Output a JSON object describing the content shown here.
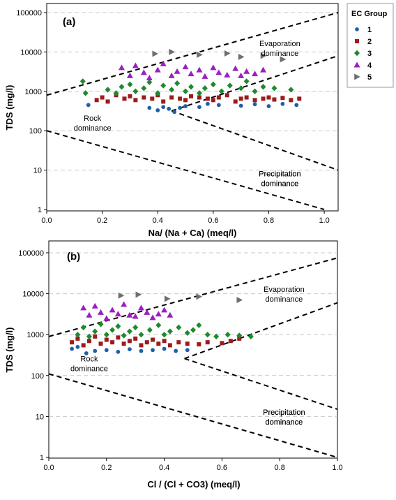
{
  "legend": {
    "title": "EC Group",
    "items": [
      {
        "label": "1",
        "color": "#1f5fa8",
        "marker": "circle"
      },
      {
        "label": "2",
        "color": "#9c1c1c",
        "marker": "square"
      },
      {
        "label": "3",
        "color": "#1e8a2e",
        "marker": "diamond"
      },
      {
        "label": "4",
        "color": "#9b1fc0",
        "marker": "triangle-up"
      },
      {
        "label": "5",
        "color": "#6e6e6e",
        "marker": "triangle-right"
      }
    ]
  },
  "chart_data": [
    {
      "type": "scatter",
      "panel_label": "(a)",
      "xlabel": "Na/ (Na + Ca)  (meq/l)",
      "ylabel": "TDS  (mg/l)",
      "xlim": [
        0,
        1.05
      ],
      "ylim": [
        1,
        100000
      ],
      "yscale": "log",
      "x_ticks": [
        "0.0",
        "0.2",
        "0.4",
        "0.6",
        "0.8",
        "1.0"
      ],
      "y_ticks": [
        "1",
        "10",
        "100",
        "1000",
        "10000",
        "100000"
      ],
      "grid": "horizontal dashed",
      "region_labels": [
        {
          "text": [
            "Evaporation",
            "dominance"
          ],
          "x": 0.84,
          "y": 14000
        },
        {
          "text": [
            "Rock",
            "dominance"
          ],
          "x": 0.165,
          "y": 180
        },
        {
          "text": [
            "Precipitation",
            "dominance"
          ],
          "x": 0.84,
          "y": 7
        },
        {
          "text": [
            "Precipitation",
            "dominance"
          ],
          "x": 0.84,
          "y": 7
        }
      ],
      "boundary_lines": [
        {
          "x": [
            0.0,
            1.05
          ],
          "y": [
            800,
            100000
          ]
        },
        {
          "x": [
            0.45,
            1.05
          ],
          "y": [
            320,
            8000
          ]
        },
        {
          "x": [
            0.45,
            1.05
          ],
          "y": [
            320,
            10
          ]
        },
        {
          "x": [
            0.0,
            1.0
          ],
          "y": [
            100,
            1
          ]
        }
      ],
      "series": [
        {
          "name": "1",
          "color": "#1f5fa8",
          "marker": "circle",
          "points": [
            [
              0.15,
              450
            ],
            [
              0.37,
              380
            ],
            [
              0.4,
              330
            ],
            [
              0.42,
              400
            ],
            [
              0.44,
              360
            ],
            [
              0.46,
              300
            ],
            [
              0.48,
              380
            ],
            [
              0.5,
              420
            ],
            [
              0.55,
              400
            ],
            [
              0.58,
              480
            ],
            [
              0.62,
              450
            ],
            [
              0.7,
              430
            ],
            [
              0.75,
              470
            ],
            [
              0.8,
              420
            ],
            [
              0.85,
              480
            ],
            [
              0.9,
              450
            ]
          ]
        },
        {
          "name": "2",
          "color": "#9c1c1c",
          "marker": "square",
          "points": [
            [
              0.18,
              600
            ],
            [
              0.2,
              700
            ],
            [
              0.22,
              550
            ],
            [
              0.25,
              800
            ],
            [
              0.28,
              650
            ],
            [
              0.3,
              750
            ],
            [
              0.32,
              600
            ],
            [
              0.35,
              700
            ],
            [
              0.38,
              650
            ],
            [
              0.4,
              800
            ],
            [
              0.42,
              550
            ],
            [
              0.45,
              700
            ],
            [
              0.48,
              650
            ],
            [
              0.5,
              600
            ],
            [
              0.52,
              750
            ],
            [
              0.55,
              700
            ],
            [
              0.58,
              650
            ],
            [
              0.6,
              600
            ],
            [
              0.62,
              700
            ],
            [
              0.65,
              800
            ],
            [
              0.68,
              550
            ],
            [
              0.7,
              650
            ],
            [
              0.72,
              700
            ],
            [
              0.75,
              600
            ],
            [
              0.78,
              650
            ],
            [
              0.8,
              700
            ],
            [
              0.82,
              620
            ],
            [
              0.85,
              680
            ],
            [
              0.88,
              600
            ],
            [
              0.91,
              650
            ]
          ]
        },
        {
          "name": "3",
          "color": "#1e8a2e",
          "marker": "diamond",
          "points": [
            [
              0.13,
              1800
            ],
            [
              0.14,
              900
            ],
            [
              0.22,
              1100
            ],
            [
              0.25,
              900
            ],
            [
              0.27,
              1300
            ],
            [
              0.3,
              1500
            ],
            [
              0.32,
              1000
            ],
            [
              0.35,
              1200
            ],
            [
              0.37,
              1700
            ],
            [
              0.4,
              900
            ],
            [
              0.42,
              1400
            ],
            [
              0.45,
              1100
            ],
            [
              0.47,
              1600
            ],
            [
              0.5,
              1000
            ],
            [
              0.52,
              1300
            ],
            [
              0.55,
              900
            ],
            [
              0.57,
              1200
            ],
            [
              0.6,
              1500
            ],
            [
              0.63,
              1000
            ],
            [
              0.66,
              1400
            ],
            [
              0.7,
              1200
            ],
            [
              0.72,
              1800
            ],
            [
              0.75,
              1000
            ],
            [
              0.78,
              1300
            ],
            [
              0.82,
              1200
            ],
            [
              0.88,
              1100
            ]
          ]
        },
        {
          "name": "4",
          "color": "#9b1fc0",
          "marker": "triangle-up",
          "points": [
            [
              0.27,
              4000
            ],
            [
              0.3,
              2500
            ],
            [
              0.32,
              4500
            ],
            [
              0.35,
              3000
            ],
            [
              0.37,
              2200
            ],
            [
              0.4,
              3500
            ],
            [
              0.42,
              5000
            ],
            [
              0.45,
              2500
            ],
            [
              0.47,
              3200
            ],
            [
              0.5,
              4200
            ],
            [
              0.52,
              2800
            ],
            [
              0.55,
              3500
            ],
            [
              0.57,
              2400
            ],
            [
              0.6,
              4000
            ],
            [
              0.62,
              3000
            ],
            [
              0.65,
              2600
            ],
            [
              0.68,
              3800
            ],
            [
              0.7,
              2500
            ],
            [
              0.72,
              3200
            ],
            [
              0.75,
              2800
            ],
            [
              0.78,
              3500
            ]
          ]
        },
        {
          "name": "5",
          "color": "#6e6e6e",
          "marker": "triangle-right",
          "points": [
            [
              0.39,
              9000
            ],
            [
              0.45,
              10000
            ],
            [
              0.55,
              8500
            ],
            [
              0.65,
              9200
            ],
            [
              0.7,
              7500
            ],
            [
              0.78,
              8000
            ],
            [
              0.85,
              6500
            ]
          ]
        }
      ]
    },
    {
      "type": "scatter",
      "panel_label": "(b)",
      "xlabel": "Cl / (Cl + CO3)  (meq/l)",
      "ylabel": "TDS  (mg/l)",
      "xlim": [
        0,
        1.0
      ],
      "ylim": [
        1,
        100000
      ],
      "yscale": "log",
      "x_ticks": [
        "0.0",
        "0.2",
        "0.4",
        "0.6",
        "0.8",
        "1.0"
      ],
      "y_ticks": [
        "1",
        "10",
        "100",
        "1000",
        "10000",
        "100000"
      ],
      "grid": "horizontal dashed",
      "region_labels": [
        {
          "text": [
            "Evaporation",
            "dominance"
          ],
          "x": 0.815,
          "y": 11000
        },
        {
          "text": [
            "Rock",
            "dominance"
          ],
          "x": 0.14,
          "y": 220
        },
        {
          "text": [
            "Precipitation",
            "dominance"
          ],
          "x": 0.815,
          "y": 11
        },
        {
          "text": [
            "Precipitation",
            "dominance"
          ],
          "x": 0.815,
          "y": 11
        }
      ],
      "boundary_lines": [
        {
          "x": [
            0.0,
            1.0
          ],
          "y": [
            900,
            75000
          ]
        },
        {
          "x": [
            0.47,
            1.0
          ],
          "y": [
            260,
            6000
          ]
        },
        {
          "x": [
            0.47,
            1.0
          ],
          "y": [
            260,
            15
          ]
        },
        {
          "x": [
            0.0,
            1.0
          ],
          "y": [
            110,
            1
          ]
        }
      ],
      "series": [
        {
          "name": "1",
          "color": "#1f5fa8",
          "marker": "circle",
          "points": [
            [
              0.08,
              450
            ],
            [
              0.1,
              500
            ],
            [
              0.13,
              350
            ],
            [
              0.16,
              400
            ],
            [
              0.2,
              420
            ],
            [
              0.24,
              380
            ],
            [
              0.28,
              440
            ],
            [
              0.32,
              400
            ],
            [
              0.36,
              420
            ],
            [
              0.4,
              450
            ],
            [
              0.44,
              400
            ],
            [
              0.48,
              420
            ]
          ]
        },
        {
          "name": "2",
          "color": "#9c1c1c",
          "marker": "square",
          "points": [
            [
              0.08,
              650
            ],
            [
              0.1,
              800
            ],
            [
              0.12,
              550
            ],
            [
              0.14,
              700
            ],
            [
              0.16,
              900
            ],
            [
              0.18,
              600
            ],
            [
              0.2,
              750
            ],
            [
              0.22,
              650
            ],
            [
              0.24,
              850
            ],
            [
              0.26,
              600
            ],
            [
              0.28,
              700
            ],
            [
              0.3,
              800
            ],
            [
              0.32,
              550
            ],
            [
              0.34,
              650
            ],
            [
              0.36,
              750
            ],
            [
              0.38,
              600
            ],
            [
              0.4,
              700
            ],
            [
              0.42,
              550
            ],
            [
              0.45,
              650
            ],
            [
              0.48,
              600
            ],
            [
              0.52,
              580
            ],
            [
              0.55,
              650
            ],
            [
              0.6,
              620
            ],
            [
              0.63,
              700
            ],
            [
              0.66,
              800
            ]
          ]
        },
        {
          "name": "3",
          "color": "#1e8a2e",
          "marker": "diamond",
          "points": [
            [
              0.1,
              1000
            ],
            [
              0.12,
              1500
            ],
            [
              0.14,
              900
            ],
            [
              0.16,
              1200
            ],
            [
              0.18,
              1800
            ],
            [
              0.2,
              1000
            ],
            [
              0.22,
              1300
            ],
            [
              0.24,
              1600
            ],
            [
              0.26,
              950
            ],
            [
              0.28,
              1200
            ],
            [
              0.3,
              1500
            ],
            [
              0.32,
              1000
            ],
            [
              0.35,
              1300
            ],
            [
              0.38,
              1700
            ],
            [
              0.4,
              1000
            ],
            [
              0.42,
              1200
            ],
            [
              0.45,
              1500
            ],
            [
              0.48,
              1100
            ],
            [
              0.5,
              1300
            ],
            [
              0.52,
              1700
            ],
            [
              0.55,
              1000
            ],
            [
              0.58,
              900
            ],
            [
              0.62,
              1000
            ],
            [
              0.66,
              950
            ],
            [
              0.7,
              900
            ]
          ]
        },
        {
          "name": "4",
          "color": "#9b1fc0",
          "marker": "triangle-up",
          "points": [
            [
              0.12,
              4500
            ],
            [
              0.14,
              3000
            ],
            [
              0.16,
              5000
            ],
            [
              0.18,
              3500
            ],
            [
              0.2,
              2500
            ],
            [
              0.22,
              4000
            ],
            [
              0.24,
              3200
            ],
            [
              0.26,
              5500
            ],
            [
              0.28,
              3000
            ],
            [
              0.3,
              2800
            ],
            [
              0.32,
              4500
            ],
            [
              0.34,
              3500
            ],
            [
              0.36,
              2600
            ],
            [
              0.38,
              3200
            ],
            [
              0.4,
              4000
            ],
            [
              0.42,
              3000
            ]
          ]
        },
        {
          "name": "5",
          "color": "#6e6e6e",
          "marker": "triangle-right",
          "points": [
            [
              0.25,
              9000
            ],
            [
              0.31,
              9500
            ],
            [
              0.41,
              7500
            ],
            [
              0.52,
              8500
            ],
            [
              0.66,
              7000
            ]
          ]
        }
      ]
    }
  ]
}
